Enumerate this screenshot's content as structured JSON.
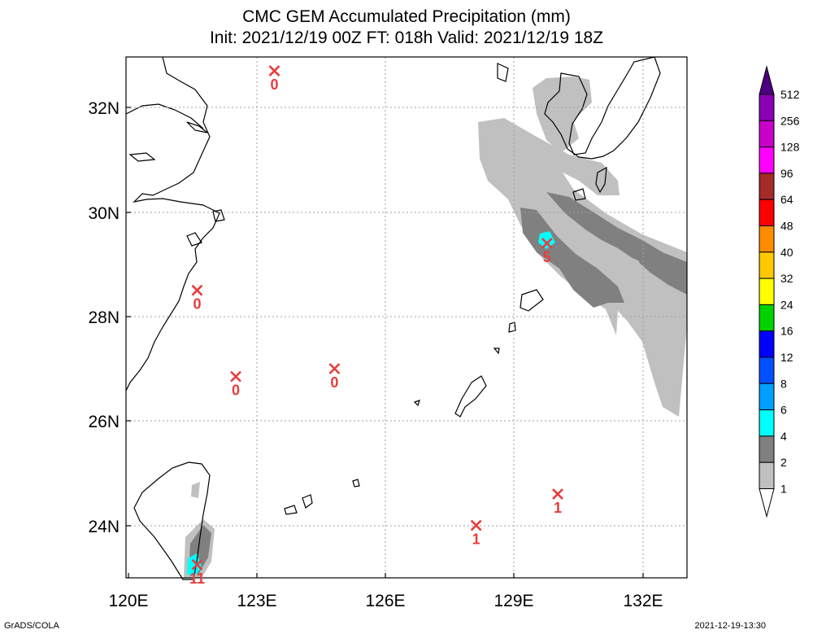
{
  "title": {
    "line1": "CMC GEM Accumulated Precipitation (mm)",
    "line2": "Init: 2021/12/19 00Z  FT: 018h  Valid: 2021/12/19 18Z"
  },
  "map": {
    "lon_ticks": [
      "120E",
      "123E",
      "126E",
      "129E",
      "132E"
    ],
    "lat_ticks": [
      "32N",
      "30N",
      "28N",
      "26N",
      "24N"
    ],
    "extent": {
      "lon": [
        120,
        133
      ],
      "lat": [
        23,
        33
      ]
    }
  },
  "stations": [
    {
      "lon": 123.4,
      "lat": 32.7,
      "value": "0"
    },
    {
      "lon": 121.6,
      "lat": 28.5,
      "value": "0"
    },
    {
      "lon": 122.5,
      "lat": 26.85,
      "value": "0"
    },
    {
      "lon": 124.8,
      "lat": 27.0,
      "value": "0"
    },
    {
      "lon": 129.75,
      "lat": 29.4,
      "value": "5"
    },
    {
      "lon": 128.1,
      "lat": 24.0,
      "value": "1"
    },
    {
      "lon": 130.0,
      "lat": 24.6,
      "value": "1"
    },
    {
      "lon": 121.6,
      "lat": 23.25,
      "value": "11"
    }
  ],
  "colorbar": {
    "labels": [
      "512",
      "256",
      "128",
      "96",
      "64",
      "48",
      "40",
      "32",
      "24",
      "16",
      "12",
      "8",
      "6",
      "4",
      "2",
      "1"
    ],
    "colors": [
      "#8a00b4",
      "#c800c8",
      "#ff00ff",
      "#a52a2a",
      "#ff0000",
      "#ff8c00",
      "#ffc800",
      "#ffff00",
      "#00d200",
      "#0000ff",
      "#0050ff",
      "#00a0ff",
      "#00ffff",
      "#808080",
      "#c0c0c0"
    ]
  },
  "footer": {
    "left": "GrADS/COLA",
    "right": "2021-12-19-13:30"
  }
}
